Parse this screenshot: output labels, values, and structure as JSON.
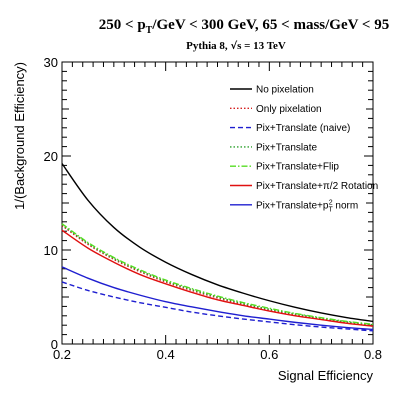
{
  "chart_data": {
    "type": "line",
    "title_parts": [
      "250 < p",
      "T",
      "/GeV < 300 GeV, 65 < mass/GeV < 95"
    ],
    "subtitle_parts": [
      "Pythia 8,  ",
      "√",
      "s = 13 TeV"
    ],
    "xlabel": "Signal Efficiency",
    "ylabel": "1/(Background Efficiency)",
    "xlim": [
      0.2,
      0.8
    ],
    "ylim": [
      0,
      30
    ],
    "xticks": [
      0.2,
      0.4,
      0.6,
      0.8
    ],
    "xtick_labels": [
      "0.2",
      "0.4",
      "0.6",
      "0.8"
    ],
    "yticks": [
      0,
      10,
      20,
      30
    ],
    "ytick_labels": [
      "0",
      "10",
      "20",
      "30"
    ],
    "legend_position": "top-right",
    "x": [
      0.2,
      0.25,
      0.3,
      0.35,
      0.4,
      0.45,
      0.5,
      0.55,
      0.6,
      0.65,
      0.7,
      0.75,
      0.8
    ],
    "series": [
      {
        "name": "No pixelation",
        "color": "#000000",
        "dash": "solid",
        "values": [
          19.2,
          15.3,
          12.4,
          10.3,
          8.7,
          7.4,
          6.3,
          5.4,
          4.6,
          3.9,
          3.3,
          2.8,
          2.4
        ]
      },
      {
        "name": "Only pixelation",
        "color": "#d62020",
        "dash": "dotted",
        "values": [
          12.6,
          10.6,
          9.0,
          7.7,
          6.6,
          5.7,
          4.9,
          4.2,
          3.6,
          3.1,
          2.7,
          2.3,
          2.0
        ]
      },
      {
        "name": "Pix+Translate (naive)",
        "color": "#1f1fd0",
        "dash": "dashed",
        "values": [
          6.6,
          5.7,
          5.0,
          4.4,
          3.9,
          3.4,
          3.0,
          2.65,
          2.35,
          2.05,
          1.8,
          1.6,
          1.4
        ]
      },
      {
        "name": "Pix+Translate",
        "color": "#2ca02c",
        "dash": "dotted",
        "values": [
          12.7,
          10.7,
          9.1,
          7.8,
          6.7,
          5.8,
          5.0,
          4.3,
          3.7,
          3.2,
          2.75,
          2.35,
          2.05
        ]
      },
      {
        "name": "Pix+Translate+Flip",
        "color": "#55dd22",
        "dash": "dashdot",
        "values": [
          12.8,
          10.8,
          9.2,
          7.9,
          6.8,
          5.9,
          5.1,
          4.4,
          3.8,
          3.25,
          2.8,
          2.4,
          2.1
        ]
      },
      {
        "name_parts": [
          "Pix+Translate+",
          "π",
          "/2 Rotation"
        ],
        "color": "#e01010",
        "dash": "solid",
        "values": [
          12.1,
          10.2,
          8.7,
          7.4,
          6.4,
          5.5,
          4.7,
          4.1,
          3.5,
          3.0,
          2.6,
          2.2,
          1.9
        ]
      },
      {
        "name_parts": [
          "Pix+Translate+p",
          "T",
          "2",
          " norm"
        ],
        "color": "#1f1fd0",
        "dash": "solid",
        "values": [
          8.2,
          7.0,
          6.0,
          5.2,
          4.5,
          3.95,
          3.45,
          3.0,
          2.65,
          2.3,
          2.0,
          1.75,
          1.55
        ]
      }
    ]
  }
}
